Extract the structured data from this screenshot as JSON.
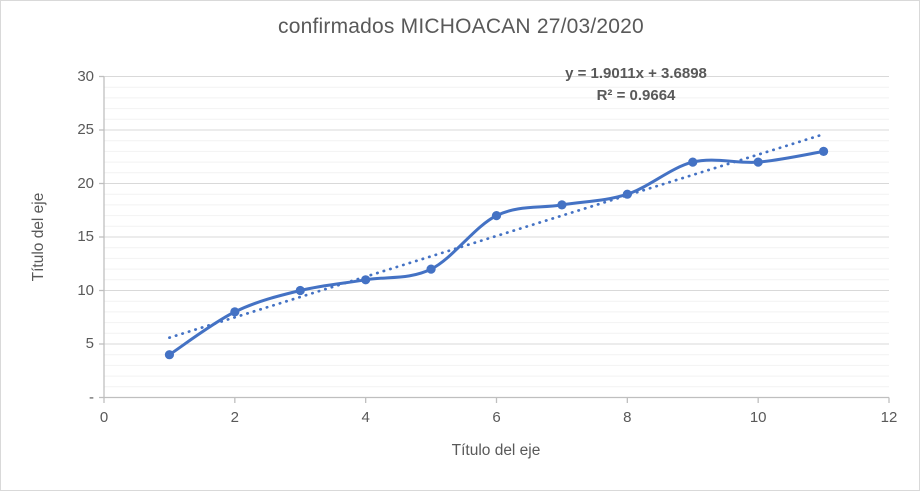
{
  "frame": {
    "background": "#ffffff",
    "border_color": "#d9d9d9"
  },
  "chart_data": {
    "type": "line",
    "title": "confirmados MICHOACAN 27/03/2020",
    "xlabel": "Título del eje",
    "ylabel": "Título del eje",
    "legend": "none",
    "x": [
      1,
      2,
      3,
      4,
      5,
      6,
      7,
      8,
      9,
      10,
      11
    ],
    "series": [
      {
        "name": "confirmados",
        "values": [
          4,
          8,
          10,
          11,
          12,
          17,
          18,
          19,
          22,
          22,
          23
        ],
        "color": "#4472c4",
        "marker": "circle",
        "smooth": true,
        "line_width": 3
      }
    ],
    "trendline": {
      "type": "linear",
      "slope": 1.9011,
      "intercept": 3.6898,
      "x_start": 1,
      "x_end": 11,
      "equation_label": "y = 1.9011x + 3.6898",
      "r_squared_label": "R² = 0.9664",
      "style": "dotted",
      "color": "#4472c4"
    },
    "x_axis": {
      "min": 0,
      "max": 12,
      "major_unit": 2,
      "ticks": [
        {
          "value": 0,
          "label": "0"
        },
        {
          "value": 2,
          "label": "2"
        },
        {
          "value": 4,
          "label": "4"
        },
        {
          "value": 6,
          "label": "6"
        },
        {
          "value": 8,
          "label": "8"
        },
        {
          "value": 10,
          "label": "10"
        },
        {
          "value": 12,
          "label": "12"
        }
      ]
    },
    "y_axis": {
      "min": 0,
      "max": 30,
      "major_unit": 5,
      "minor_unit": 1,
      "ticks": [
        {
          "value": 0,
          "label": "-"
        },
        {
          "value": 5,
          "label": "5"
        },
        {
          "value": 10,
          "label": "10"
        },
        {
          "value": 15,
          "label": "15"
        },
        {
          "value": 20,
          "label": "20"
        },
        {
          "value": 25,
          "label": "25"
        },
        {
          "value": 30,
          "label": "30"
        }
      ]
    },
    "grid": {
      "major": true,
      "minor": true,
      "major_color": "#d9d9d9",
      "minor_color": "#f2f2f2"
    },
    "axis_line_color": "#bfbfbf",
    "text_color": "#595959"
  }
}
